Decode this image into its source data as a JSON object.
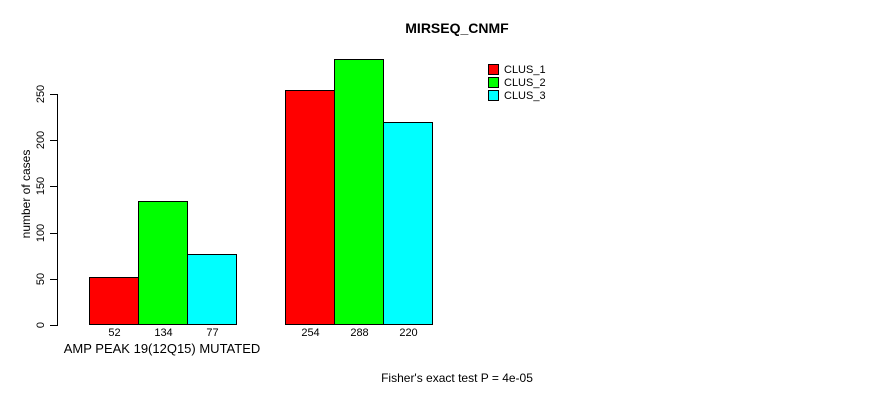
{
  "chart_data": {
    "type": "bar",
    "title": "MIRSEQ_CNMF",
    "ylabel": "number of cases",
    "xlabel": "",
    "ylim": [
      0,
      290
    ],
    "yticks": [
      0,
      50,
      100,
      150,
      200,
      250
    ],
    "grid": false,
    "legend_position": "top-right-inside",
    "categories": [
      "AMP PEAK 19(12Q15) MUTATED",
      ""
    ],
    "series": [
      {
        "name": "CLUS_1",
        "color": "#ff0000",
        "values": [
          52,
          254
        ]
      },
      {
        "name": "CLUS_2",
        "color": "#00ff00",
        "values": [
          134,
          288
        ]
      },
      {
        "name": "CLUS_3",
        "color": "#00ffff",
        "values": [
          77,
          220
        ]
      }
    ],
    "bar_value_labels": [
      [
        52,
        134,
        77
      ],
      [
        254,
        288,
        220
      ]
    ],
    "annotation": "Fisher's exact test P = 4e-05"
  }
}
